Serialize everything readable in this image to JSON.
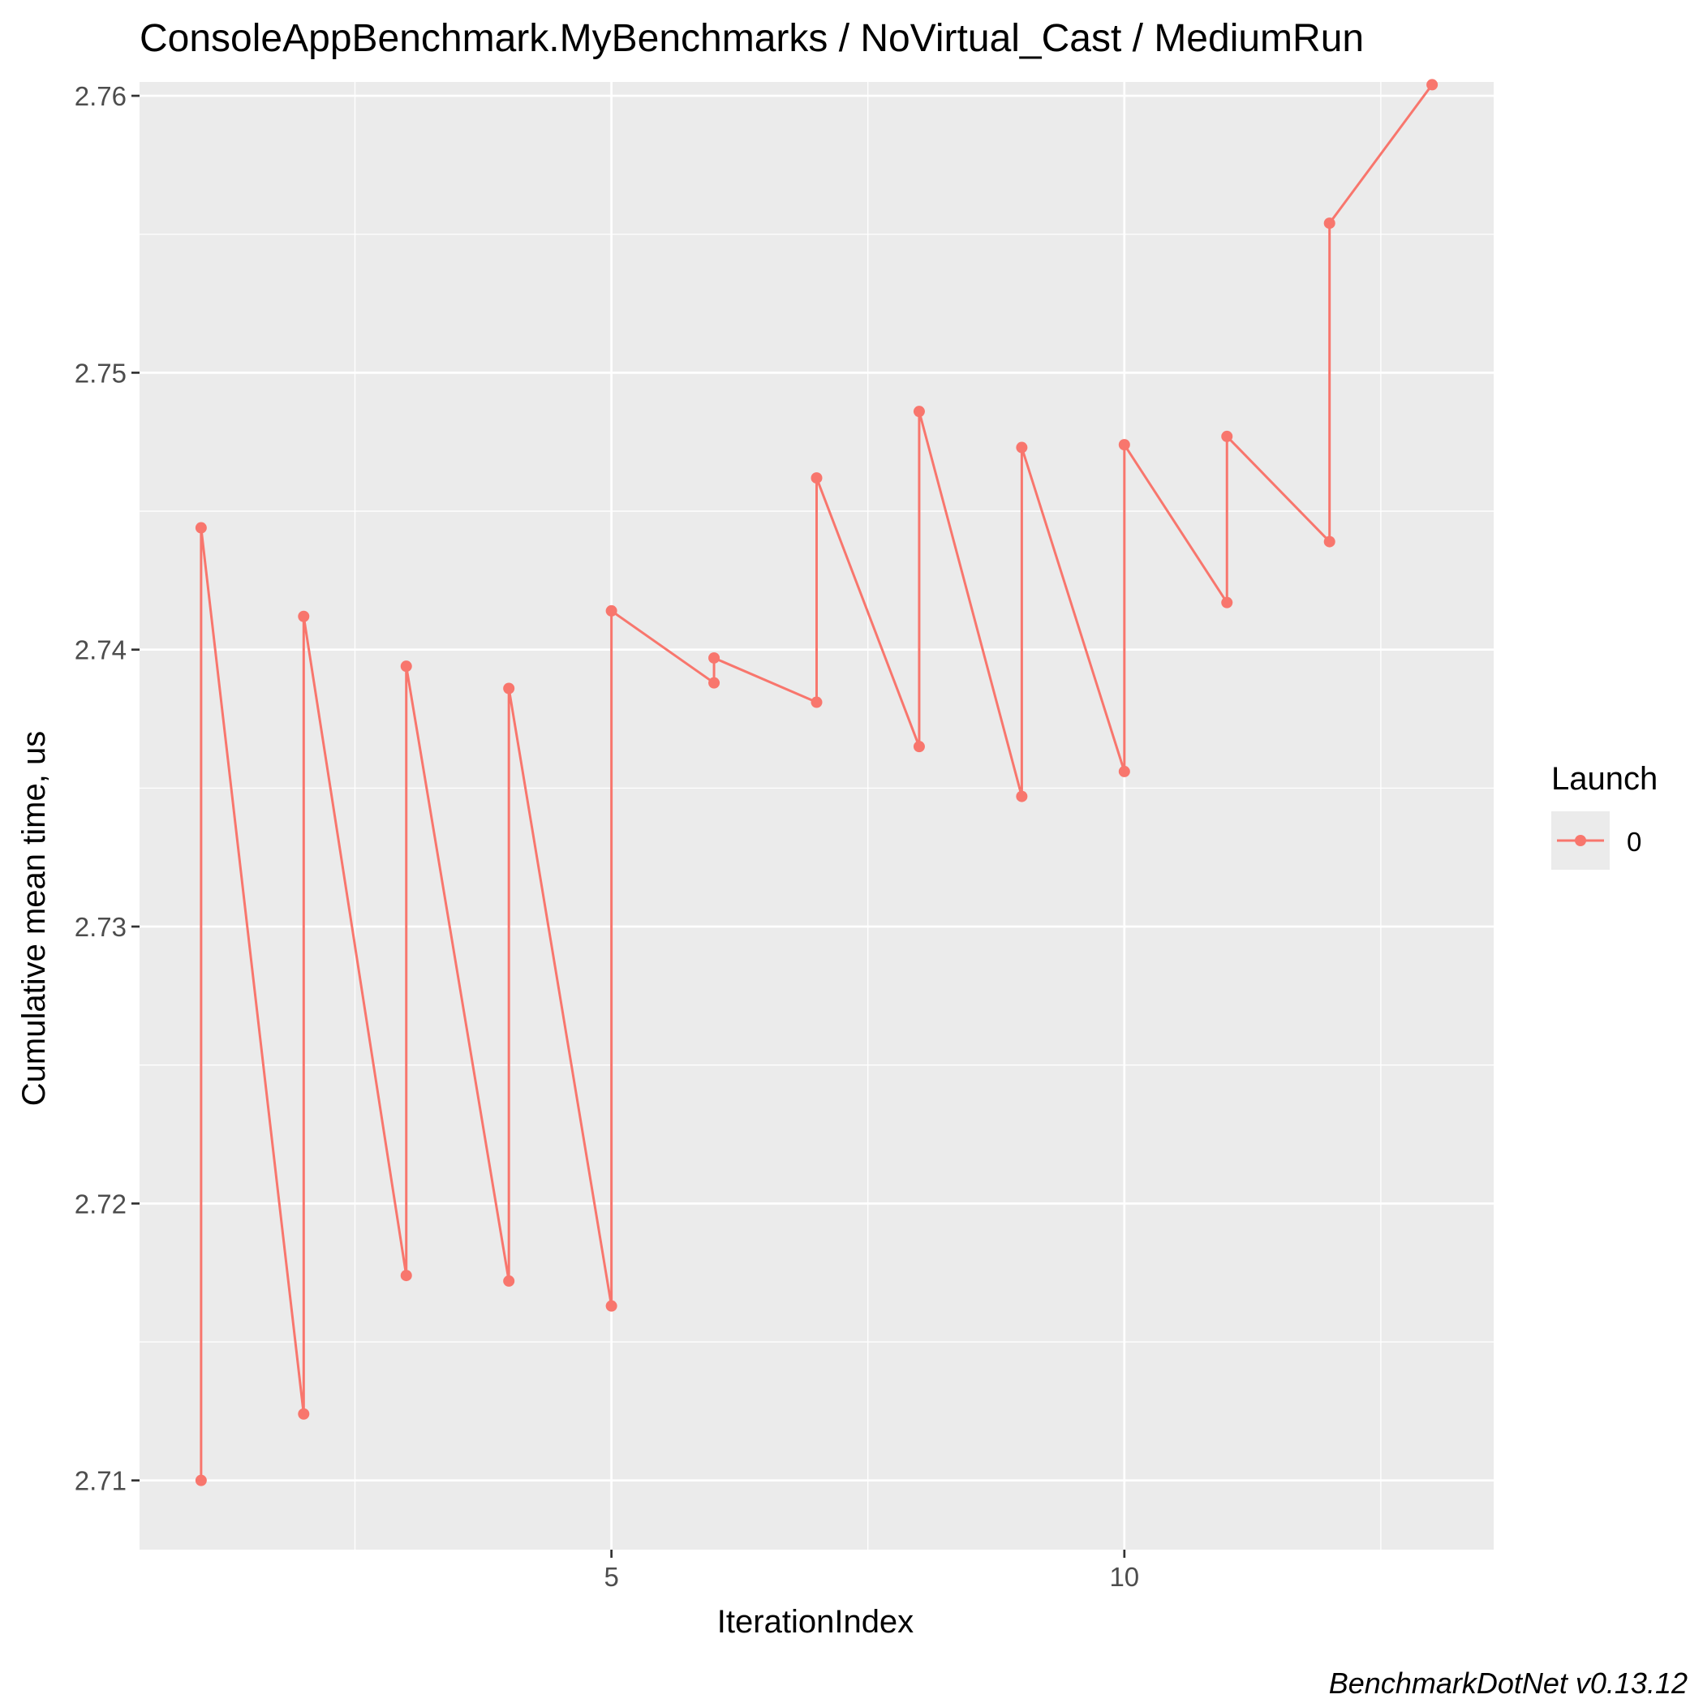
{
  "chart_data": {
    "type": "line",
    "title": "ConsoleAppBenchmark.MyBenchmarks / NoVirtual_Cast / MediumRun",
    "xlabel": "IterationIndex",
    "ylabel": "Cumulative mean time, us",
    "caption": "BenchmarkDotNet v0.13.12",
    "xlim": [
      0.4,
      13.6
    ],
    "ylim": [
      2.7075,
      2.7605
    ],
    "x_ticks": [
      5,
      10
    ],
    "y_ticks": [
      2.71,
      2.72,
      2.73,
      2.74,
      2.75,
      2.76
    ],
    "x_tick_labels": [
      "5",
      "10"
    ],
    "y_tick_labels": [
      "2.71",
      "2.72",
      "2.73",
      "2.74",
      "2.75",
      "2.76"
    ],
    "grid": true,
    "legend": {
      "title": "Launch",
      "position": "right",
      "entries": [
        "0"
      ]
    },
    "colors": {
      "series": "#f8766d",
      "panel": "#ebebeb",
      "grid": "#ffffff"
    },
    "series": [
      {
        "name": "0",
        "points": [
          [
            1,
            2.71
          ],
          [
            1,
            2.7444
          ],
          [
            2,
            2.7124
          ],
          [
            2,
            2.7412
          ],
          [
            3,
            2.7174
          ],
          [
            3,
            2.7394
          ],
          [
            4,
            2.7172
          ],
          [
            4,
            2.7386
          ],
          [
            5,
            2.7163
          ],
          [
            5,
            2.7414
          ],
          [
            6,
            2.7388
          ],
          [
            6,
            2.7397
          ],
          [
            7,
            2.7381
          ],
          [
            7,
            2.7462
          ],
          [
            8,
            2.7365
          ],
          [
            8,
            2.7486
          ],
          [
            9,
            2.7347
          ],
          [
            9,
            2.7473
          ],
          [
            10,
            2.7356
          ],
          [
            10,
            2.7474
          ],
          [
            11,
            2.7417
          ],
          [
            11,
            2.7477
          ],
          [
            12,
            2.7439
          ],
          [
            12,
            2.7554
          ],
          [
            13,
            2.7604
          ]
        ]
      }
    ]
  }
}
